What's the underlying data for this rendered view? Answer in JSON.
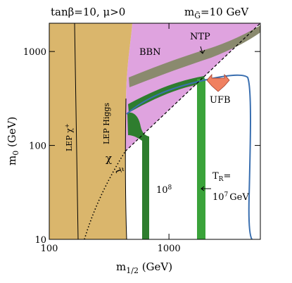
{
  "chart_data": {
    "type": "region",
    "title": "tanβ=10, μ>0",
    "title_right": {
      "symbol": "m",
      "subscript": "G̃",
      "rest": "=10 GeV"
    },
    "x_label": {
      "symbol": "m",
      "subscript": "1/2",
      "unit": " (GeV)"
    },
    "y_label": {
      "symbol": "m",
      "subscript": "0",
      "unit": " (GeV)"
    },
    "xlim": [
      100,
      5800
    ],
    "ylim": [
      10,
      2000
    ],
    "log_x": true,
    "log_y": true,
    "xticks": [
      100,
      1000
    ],
    "yticks": [
      10,
      100,
      1000
    ],
    "annotations": {
      "lep_chargino": {
        "text": "LEP χ",
        "sup": "+"
      },
      "lep_higgs": "LEP Higgs",
      "bbn": "BBN",
      "ntp": "NTP",
      "ufb": "UFB",
      "chi": "χ",
      "stau": "τ̃",
      "tr_high": {
        "text": "10",
        "sup": "8"
      },
      "tr_low": {
        "symbol": "T",
        "subscript": "R",
        "eq": "=",
        "base": "10",
        "sup": "7",
        "unit": "GeV"
      }
    }
  }
}
